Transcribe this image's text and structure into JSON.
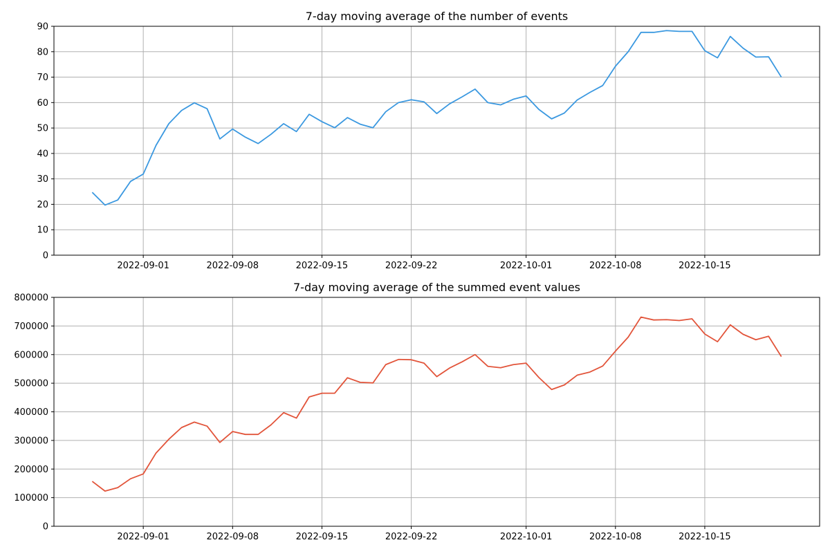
{
  "chart_data": [
    {
      "type": "line",
      "title": "7-day moving average of the number of events",
      "xlabel": "",
      "ylabel": "",
      "x": [
        "2022-08-28",
        "2022-08-29",
        "2022-08-30",
        "2022-08-31",
        "2022-09-01",
        "2022-09-02",
        "2022-09-03",
        "2022-09-04",
        "2022-09-05",
        "2022-09-06",
        "2022-09-07",
        "2022-09-08",
        "2022-09-09",
        "2022-09-10",
        "2022-09-11",
        "2022-09-12",
        "2022-09-13",
        "2022-09-14",
        "2022-09-15",
        "2022-09-16",
        "2022-09-17",
        "2022-09-18",
        "2022-09-19",
        "2022-09-20",
        "2022-09-21",
        "2022-09-22",
        "2022-09-23",
        "2022-09-24",
        "2022-09-25",
        "2022-09-26",
        "2022-09-27",
        "2022-09-28",
        "2022-09-29",
        "2022-09-30",
        "2022-10-01",
        "2022-10-02",
        "2022-10-03",
        "2022-10-04",
        "2022-10-05",
        "2022-10-06",
        "2022-10-07",
        "2022-10-08",
        "2022-10-09",
        "2022-10-10",
        "2022-10-11",
        "2022-10-12",
        "2022-10-13",
        "2022-10-14",
        "2022-10-15",
        "2022-10-16",
        "2022-10-17",
        "2022-10-18",
        "2022-10-19",
        "2022-10-20",
        "2022-10-21"
      ],
      "series": [
        {
          "color": "#3a98e0",
          "values": [
            24.7,
            19.7,
            21.7,
            29.0,
            31.9,
            43.2,
            51.7,
            56.9,
            59.9,
            57.6,
            45.7,
            49.6,
            46.4,
            43.9,
            47.5,
            51.7,
            48.6,
            55.4,
            52.5,
            50.1,
            54.1,
            51.5,
            50.1,
            56.4,
            60.0,
            61.1,
            60.3,
            55.7,
            59.5,
            62.3,
            65.3,
            60.0,
            59.1,
            61.3,
            62.6,
            57.3,
            53.6,
            55.9,
            61.0,
            64.0,
            66.7,
            74.3,
            80.0,
            87.6,
            87.6,
            88.3,
            88.0,
            88.0,
            80.4,
            77.6,
            86.0,
            81.4,
            77.9,
            78.0,
            70.0
          ]
        }
      ],
      "xticks": [
        "2022-09-01",
        "2022-09-08",
        "2022-09-15",
        "2022-09-22",
        "2022-10-01",
        "2022-10-08",
        "2022-10-15"
      ],
      "yticks": [
        "0",
        "10",
        "20",
        "30",
        "40",
        "50",
        "60",
        "70",
        "80",
        "90"
      ],
      "xlim": [
        "2022-08-25",
        "2022-10-24"
      ],
      "ylim": [
        0,
        90
      ],
      "grid": true
    },
    {
      "type": "line",
      "title": "7-day moving average of the summed event values",
      "xlabel": "",
      "ylabel": "",
      "x": [
        "2022-08-28",
        "2022-08-29",
        "2022-08-30",
        "2022-08-31",
        "2022-09-01",
        "2022-09-02",
        "2022-09-03",
        "2022-09-04",
        "2022-09-05",
        "2022-09-06",
        "2022-09-07",
        "2022-09-08",
        "2022-09-09",
        "2022-09-10",
        "2022-09-11",
        "2022-09-12",
        "2022-09-13",
        "2022-09-14",
        "2022-09-15",
        "2022-09-16",
        "2022-09-17",
        "2022-09-18",
        "2022-09-19",
        "2022-09-20",
        "2022-09-21",
        "2022-09-22",
        "2022-09-23",
        "2022-09-24",
        "2022-09-25",
        "2022-09-26",
        "2022-09-27",
        "2022-09-28",
        "2022-09-29",
        "2022-09-30",
        "2022-10-01",
        "2022-10-02",
        "2022-10-03",
        "2022-10-04",
        "2022-10-05",
        "2022-10-06",
        "2022-10-07",
        "2022-10-08",
        "2022-10-09",
        "2022-10-10",
        "2022-10-11",
        "2022-10-12",
        "2022-10-13",
        "2022-10-14",
        "2022-10-15",
        "2022-10-16",
        "2022-10-17",
        "2022-10-18",
        "2022-10-19",
        "2022-10-20",
        "2022-10-21"
      ],
      "series": [
        {
          "color": "#e2543a",
          "values": [
            157000,
            123000,
            135000,
            166000,
            183000,
            256000,
            304000,
            345000,
            364000,
            350000,
            293000,
            331000,
            321000,
            321000,
            354000,
            397000,
            378000,
            452000,
            465000,
            465000,
            519000,
            503000,
            501000,
            565000,
            583000,
            582000,
            570000,
            523000,
            553000,
            575000,
            600000,
            559000,
            554000,
            565000,
            570000,
            520000,
            478000,
            494000,
            528000,
            539000,
            560000,
            612000,
            661000,
            731000,
            721000,
            722000,
            719000,
            725000,
            672000,
            645000,
            704000,
            671000,
            652000,
            664000,
            593000
          ]
        }
      ],
      "xticks": [
        "2022-09-01",
        "2022-09-08",
        "2022-09-15",
        "2022-09-22",
        "2022-10-01",
        "2022-10-08",
        "2022-10-15"
      ],
      "yticks": [
        "0",
        "100000",
        "200000",
        "300000",
        "400000",
        "500000",
        "600000",
        "700000",
        "800000"
      ],
      "xlim": [
        "2022-08-25",
        "2022-10-24"
      ],
      "ylim": [
        0,
        800000
      ],
      "grid": true
    }
  ]
}
